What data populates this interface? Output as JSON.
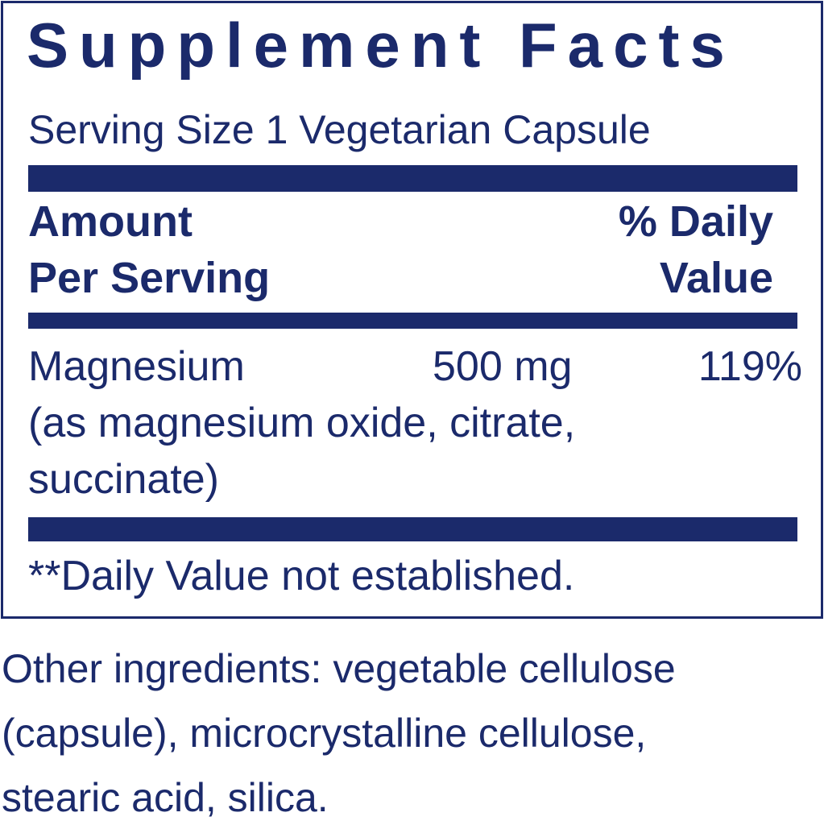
{
  "title": "Supplement Facts",
  "serving_size": "Serving Size 1 Vegetarian Capsule",
  "header": {
    "amount": [
      "Amount",
      "Per Serving"
    ],
    "daily_value": [
      "% Daily",
      "Value"
    ]
  },
  "rows": [
    {
      "name": "Magnesium",
      "amount": "500 mg",
      "daily_value": "119%",
      "detail": [
        "(as magnesium oxide, citrate,",
        "succinate)"
      ]
    }
  ],
  "footnote": "**Daily Value not established.",
  "other_ingredients": [
    "Other ingredients: vegetable cellulose",
    "(capsule), microcrystalline cellulose,",
    "stearic acid, silica."
  ]
}
